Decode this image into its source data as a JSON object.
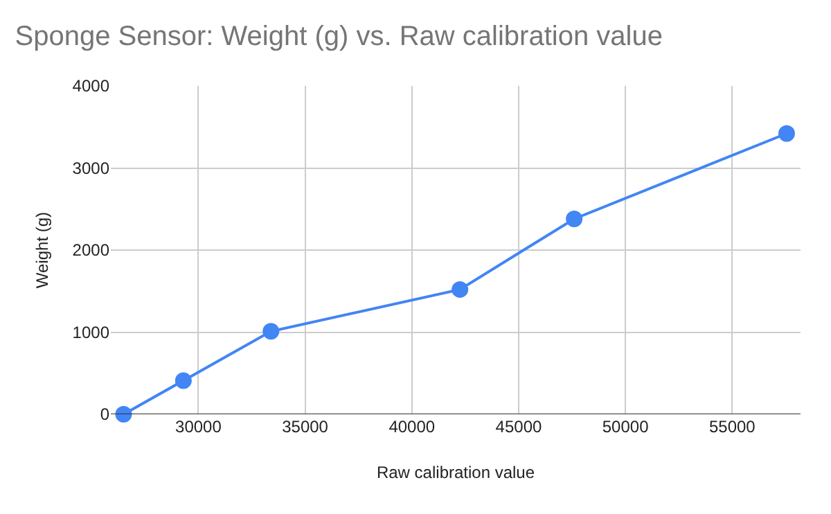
{
  "chart_data": {
    "type": "line",
    "title": "Sponge Sensor: Weight (g) vs. Raw calibration value",
    "xlabel": "Raw calibration value",
    "ylabel": "Weight (g)",
    "x": [
      26500,
      29300,
      33400,
      42250,
      47600,
      57550
    ],
    "series": [
      {
        "color": "#4285f4",
        "values": [
          0,
          410,
          1010,
          1520,
          2380,
          3420
        ]
      }
    ],
    "xlim": [
      25900,
      58200
    ],
    "xticks": [
      30000,
      35000,
      40000,
      45000,
      50000,
      55000
    ],
    "ylim": [
      0,
      4000
    ],
    "yticks": [
      0,
      1000,
      2000,
      3000,
      4000
    ],
    "grid": true,
    "legend": false,
    "marker": "circle",
    "line_style": "solid"
  }
}
